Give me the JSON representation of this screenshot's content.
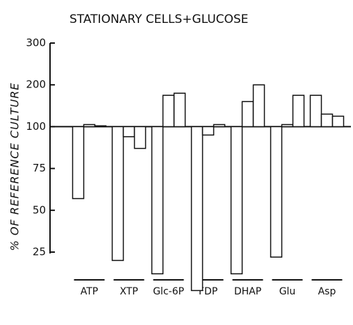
{
  "chart_data": {
    "type": "bar",
    "title": "STATIONARY CELLS+GLUCOSE",
    "y_label": "% OF REFERENCE CULTURE",
    "categories": [
      "ATP",
      "XTP",
      "Glc-6P",
      "FDP",
      "DHAP",
      "Glu",
      "Asp"
    ],
    "series": [
      {
        "color": "#111111",
        "values": [
          57,
          20,
          12,
          2,
          12,
          22,
          175
        ]
      },
      {
        "color": "#111111",
        "values": [
          105,
          94,
          175,
          95,
          160,
          105,
          130
        ]
      },
      {
        "color": "#111111",
        "values": [
          102,
          87,
          180,
          105,
          200,
          175,
          125
        ]
      }
    ],
    "base": 100,
    "ylim": [
      0,
      300
    ],
    "yticks": [
      300,
      200,
      100,
      75,
      50,
      25
    ],
    "scale": "piecewise"
  }
}
